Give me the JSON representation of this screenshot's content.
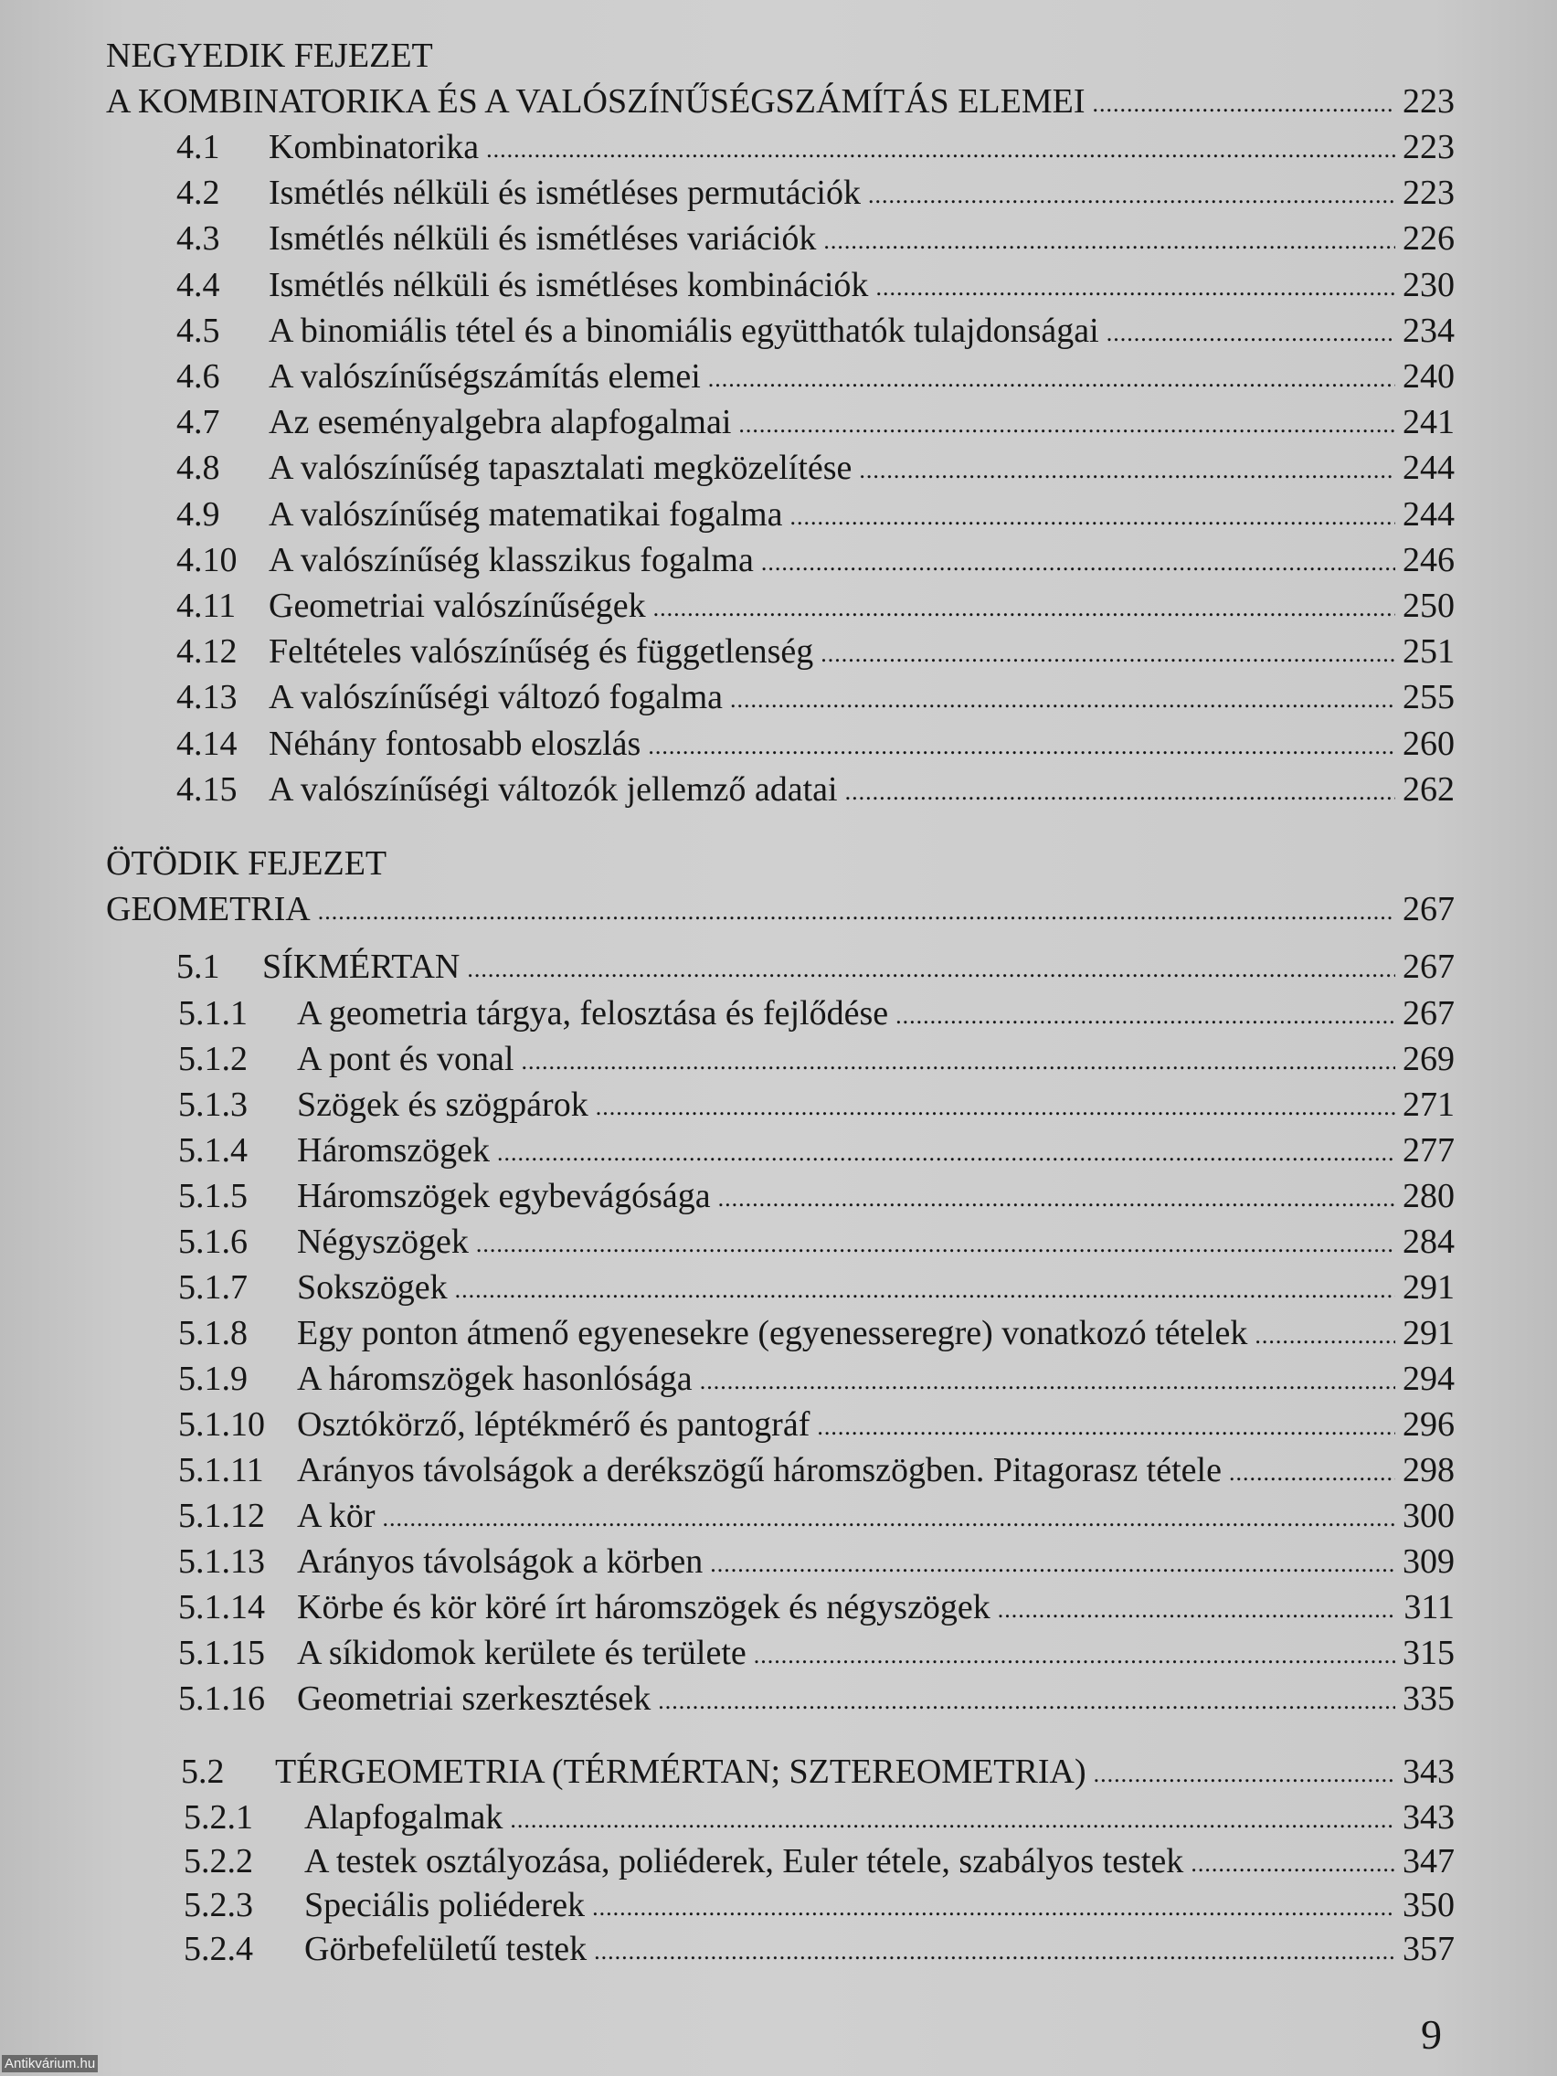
{
  "chapters": [
    {
      "heading": "NEGYEDIK FEJEZET",
      "title": "A KOMBINATORIKA ÉS A VALÓSZÍNŰSÉGSZÁMÍTÁS  ELEMEI",
      "page": "223",
      "entries": [
        {
          "num": "4.1",
          "title": "Kombinatorika",
          "page": "223"
        },
        {
          "num": "4.2",
          "title": "Ismétlés nélküli és ismétléses permutációk",
          "page": "223"
        },
        {
          "num": "4.3",
          "title": "Ismétlés nélküli és ismétléses variációk",
          "page": "226"
        },
        {
          "num": "4.4",
          "title": "Ismétlés nélküli és ismétléses kombinációk",
          "page": "230"
        },
        {
          "num": "4.5",
          "title": "A binomiális tétel és a binomiális együtthatók tulajdonságai",
          "page": "234"
        },
        {
          "num": "4.6",
          "title": "A valószínűségszámítás elemei",
          "page": "240"
        },
        {
          "num": "4.7",
          "title": "Az eseményalgebra alapfogalmai",
          "page": "241"
        },
        {
          "num": "4.8",
          "title": "A valószínűség tapasztalati megközelítése",
          "page": "244"
        },
        {
          "num": "4.9",
          "title": "A valószínűség matematikai fogalma",
          "page": "244"
        },
        {
          "num": "4.10",
          "title": "A valószínűség klasszikus fogalma",
          "page": "246"
        },
        {
          "num": "4.11",
          "title": "Geometriai valószínűségek",
          "page": "250"
        },
        {
          "num": "4.12",
          "title": "Feltételes valószínűség és függetlenség",
          "page": "251"
        },
        {
          "num": "4.13",
          "title": "A valószínűségi változó fogalma",
          "page": "255"
        },
        {
          "num": "4.14",
          "title": "Néhány fontosabb eloszlás",
          "page": "260"
        },
        {
          "num": "4.15",
          "title": "A valószínűségi változók jellemző adatai",
          "page": "262"
        }
      ]
    },
    {
      "heading": "ÖTÖDIK FEJEZET",
      "title": "GEOMETRIA",
      "page": "267",
      "sections": [
        {
          "num": "5.1",
          "title": "SÍKMÉRTAN",
          "page": "267",
          "entries": [
            {
              "num": "5.1.1",
              "title": "A geometria tárgya, felosztása és fejlődése",
              "page": "267"
            },
            {
              "num": "5.1.2",
              "title": "A pont és vonal",
              "page": "269"
            },
            {
              "num": "5.1.3",
              "title": "Szögek és szögpárok",
              "page": "271"
            },
            {
              "num": "5.1.4",
              "title": "Háromszögek",
              "page": "277"
            },
            {
              "num": "5.1.5",
              "title": "Háromszögek egybevágósága",
              "page": "280"
            },
            {
              "num": "5.1.6",
              "title": "Négyszögek",
              "page": "284"
            },
            {
              "num": "5.1.7",
              "title": "Sokszögek",
              "page": "291"
            },
            {
              "num": "5.1.8",
              "title": "Egy ponton átmenő egyenesekre (egyenesseregre) vonatkozó tételek",
              "page": "291"
            },
            {
              "num": "5.1.9",
              "title": "A háromszögek hasonlósága",
              "page": "294"
            },
            {
              "num": "5.1.10",
              "title": "Osztókörző, léptékmérő és pantográf",
              "page": "296"
            },
            {
              "num": "5.1.11",
              "title": "Arányos távolságok a derékszögű háromszögben. Pitagorasz tétele",
              "page": "298"
            },
            {
              "num": "5.1.12",
              "title": "A kör",
              "page": "300"
            },
            {
              "num": "5.1.13",
              "title": "Arányos távolságok a körben",
              "page": "309"
            },
            {
              "num": "5.1.14",
              "title": "Körbe és kör köré írt háromszögek és négyszögek",
              "page": "311"
            },
            {
              "num": "5.1.15",
              "title": "A síkidomok kerülete és területe",
              "page": "315"
            },
            {
              "num": "5.1.16",
              "title": "Geometriai szerkesztések",
              "page": "335"
            }
          ]
        },
        {
          "num": "5.2",
          "title": "TÉRGEOMETRIA (TÉRMÉRTAN; SZTEREOMETRIA)",
          "page": "343",
          "entries": [
            {
              "num": "5.2.1",
              "title": "Alapfogalmak",
              "page": "343"
            },
            {
              "num": "5.2.2",
              "title": "A testek osztályozása, poliéderek, Euler tétele, szabályos testek",
              "page": "347"
            },
            {
              "num": "5.2.3",
              "title": "Speciális poliéderek",
              "page": "350"
            },
            {
              "num": "5.2.4",
              "title": "Görbefelületű testek",
              "page": "357"
            }
          ]
        }
      ]
    }
  ],
  "page_number": "9",
  "watermark": "Antikvárium.hu"
}
